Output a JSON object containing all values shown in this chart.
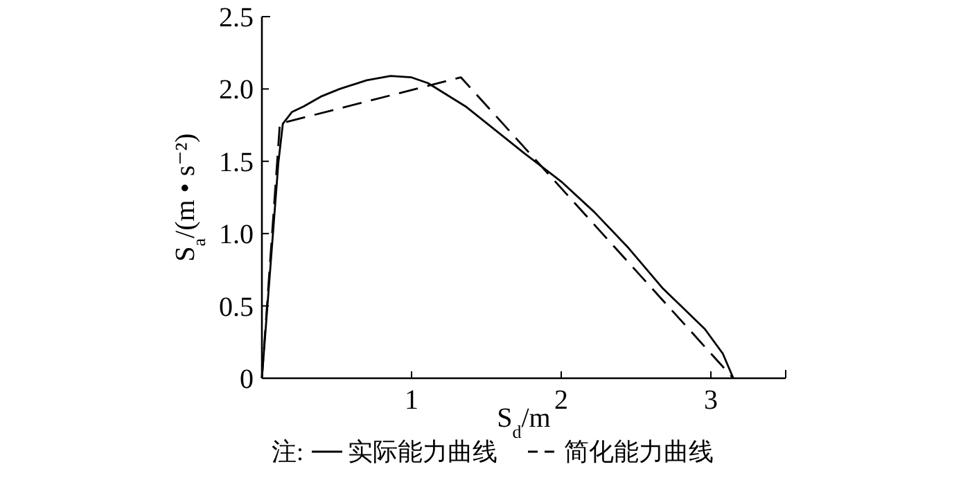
{
  "chart_data": {
    "type": "line",
    "xlabel": "S$_{d}$/m",
    "ylabel": "S$_{a}$/(m • s⁻²)",
    "annotations": [
      "注:"
    ],
    "legend": "bottom",
    "xlim": [
      0,
      3.5
    ],
    "ylim": [
      0,
      2.5
    ],
    "xticks": [
      1,
      2,
      3
    ],
    "yticks": [
      0,
      0.5,
      {
        "value": 1,
        "label": "1.0"
      },
      1.5,
      {
        "value": 2,
        "label": "2.0"
      },
      2.5
    ],
    "series": [
      {
        "name": "实际能力曲线",
        "color": "#000000",
        "line_style": "solid",
        "x": [
          0,
          0.11,
          0.14,
          0.2,
          0.28,
          0.4,
          0.52,
          0.7,
          0.86,
          1.0,
          1.11,
          1.36,
          1.76,
          2.0,
          2.22,
          2.45,
          2.68,
          2.85,
          2.96,
          3.08,
          3.15
        ],
        "values": [
          0,
          1.49,
          1.76,
          1.84,
          1.88,
          1.95,
          2.0,
          2.06,
          2.09,
          2.08,
          2.04,
          1.88,
          1.55,
          1.36,
          1.15,
          0.9,
          0.62,
          0.45,
          0.34,
          0.17,
          0
        ]
      },
      {
        "name": "简化能力曲线",
        "color": "#000000",
        "line_style": "dashed",
        "x": [
          0,
          0.12,
          1.33,
          3.15
        ],
        "values": [
          0,
          1.76,
          2.08,
          0
        ]
      }
    ]
  }
}
